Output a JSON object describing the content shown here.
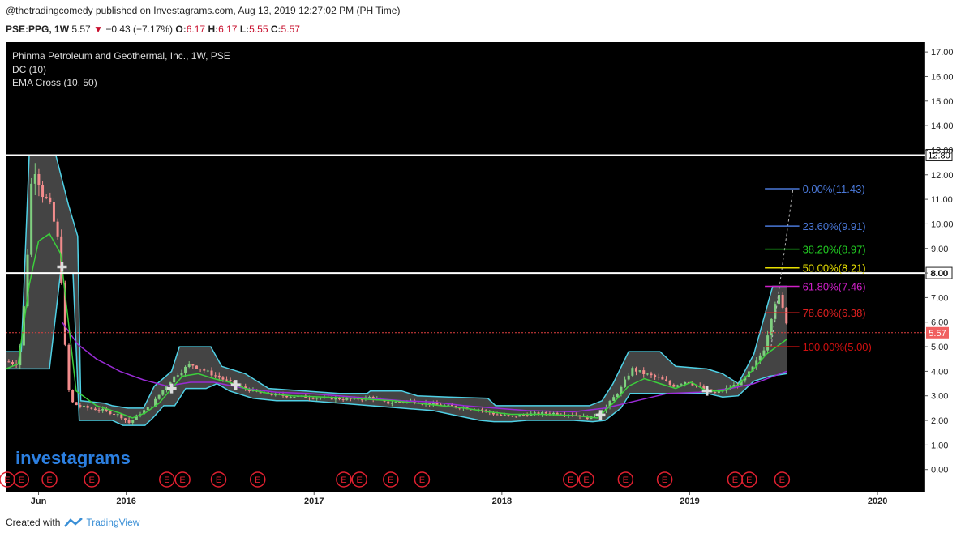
{
  "header": {
    "published": "@thetradingcomedy published on Investagrams.com, Aug 13, 2019 12:27:02 PM (PH Time)",
    "symbol": "PSE:PPG, 1W",
    "last": "5.57",
    "change": "−0.43 (−7.17%)",
    "open_label": "O:",
    "open": "6.17",
    "high_label": "H:",
    "high": "6.17",
    "low_label": "L:",
    "low": "5.55",
    "close_label": "C:",
    "close": "5.57"
  },
  "legend": {
    "title": "Phinma Petroleum and Geothermal, Inc., 1W, PSE",
    "dc": "DC (10)",
    "ema": "EMA Cross (10, 50)"
  },
  "watermark": "investagrams",
  "footer": {
    "created_with": "Created with",
    "brand": "TradingView"
  },
  "chart_data": {
    "type": "candlestick",
    "title": "Phinma Petroleum and Geothermal, Inc., 1W, PSE",
    "ylim": [
      -0.9,
      17.4
    ],
    "y_ticks": [
      "0.00",
      "1.00",
      "2.00",
      "3.00",
      "4.00",
      "5.00",
      "6.00",
      "7.00",
      "8.00",
      "9.00",
      "10.00",
      "11.00",
      "12.00",
      "13.00",
      "14.00",
      "15.00",
      "16.00",
      "17.00"
    ],
    "x_ticks": [
      {
        "label": "Jun",
        "t": 0.8
      },
      {
        "label": "2016",
        "t": 6.4
      },
      {
        "label": "2017",
        "t": 18.4
      },
      {
        "label": "2018",
        "t": 30.4
      },
      {
        "label": "2019",
        "t": 42.4
      },
      {
        "label": "2020",
        "t": 54.4
      }
    ],
    "x_range": [
      -1.3,
      57.4
    ],
    "horizontal_lines": [
      {
        "price": 12.8,
        "label": "12.80"
      },
      {
        "price": 8.0,
        "label": "8.00"
      }
    ],
    "last_price": {
      "price": 5.57,
      "label": "5.57"
    },
    "fibonacci": [
      {
        "label": "0.00%(11.43)",
        "price": 11.43,
        "color": "#4a78d8"
      },
      {
        "label": "23.60%(9.91)",
        "price": 9.91,
        "color": "#4a78d8"
      },
      {
        "label": "38.20%(8.97)",
        "price": 8.97,
        "color": "#22cc22"
      },
      {
        "label": "50.00%(8.21)",
        "price": 8.21,
        "color": "#e8e000"
      },
      {
        "label": "61.80%(7.46)",
        "price": 7.46,
        "color": "#d020c8"
      },
      {
        "label": "78.60%(6.38)",
        "price": 6.38,
        "color": "#e02020"
      },
      {
        "label": "100.00%(5.00)",
        "price": 5.0,
        "color": "#d01010"
      }
    ],
    "price_path": [
      [
        -1.3,
        4.4
      ],
      [
        -0.5,
        4.3
      ],
      [
        0,
        7.5
      ],
      [
        0.3,
        11.5
      ],
      [
        0.6,
        12.3
      ],
      [
        1.0,
        11.3
      ],
      [
        1.5,
        10.8
      ],
      [
        2.0,
        9.5
      ],
      [
        2.2,
        8.4
      ],
      [
        2.5,
        5.0
      ],
      [
        2.8,
        2.8
      ],
      [
        3.3,
        2.6
      ],
      [
        4,
        2.5
      ],
      [
        5,
        2.4
      ],
      [
        6,
        2.2
      ],
      [
        6.6,
        1.9
      ],
      [
        7.3,
        2.3
      ],
      [
        8,
        2.6
      ],
      [
        8.8,
        3.3
      ],
      [
        9.5,
        3.8
      ],
      [
        10.5,
        4.3
      ],
      [
        11.5,
        4.0
      ],
      [
        12.5,
        3.7
      ],
      [
        13.5,
        3.4
      ],
      [
        15,
        3.1
      ],
      [
        16.5,
        3.0
      ],
      [
        18,
        2.95
      ],
      [
        19.5,
        2.9
      ],
      [
        21,
        2.85
      ],
      [
        22,
        2.95
      ],
      [
        23,
        2.7
      ],
      [
        24.5,
        2.8
      ],
      [
        26,
        2.65
      ],
      [
        27.5,
        2.55
      ],
      [
        29,
        2.45
      ],
      [
        30,
        2.25
      ],
      [
        31,
        2.15
      ],
      [
        32,
        2.25
      ],
      [
        33.5,
        2.3
      ],
      [
        35,
        2.25
      ],
      [
        36,
        2.1
      ],
      [
        37,
        2.5
      ],
      [
        38,
        3.3
      ],
      [
        38.7,
        4.1
      ],
      [
        39.5,
        3.9
      ],
      [
        40.5,
        3.7
      ],
      [
        41.3,
        3.4
      ],
      [
        42.2,
        3.6
      ],
      [
        43.2,
        3.3
      ],
      [
        44,
        3.1
      ],
      [
        45,
        3.35
      ],
      [
        45.8,
        3.6
      ],
      [
        46.6,
        4.3
      ],
      [
        47.2,
        5.0
      ],
      [
        47.6,
        6.2
      ],
      [
        48,
        7.2
      ],
      [
        48.4,
        6.4
      ],
      [
        48.8,
        5.6
      ]
    ],
    "donchian_upper": [
      [
        -1.3,
        4.8
      ],
      [
        -0.3,
        4.8
      ],
      [
        0.2,
        12.8
      ],
      [
        1.9,
        12.8
      ],
      [
        2.7,
        10.8
      ],
      [
        3.3,
        9.5
      ],
      [
        3.5,
        2.8
      ],
      [
        5,
        2.7
      ],
      [
        5.5,
        2.6
      ],
      [
        6.5,
        2.5
      ],
      [
        7.5,
        2.5
      ],
      [
        8.2,
        3.4
      ],
      [
        9.3,
        4.0
      ],
      [
        9.8,
        5.0
      ],
      [
        11.8,
        5.0
      ],
      [
        12.5,
        4.2
      ],
      [
        14,
        3.9
      ],
      [
        15.5,
        3.3
      ],
      [
        20,
        3.1
      ],
      [
        21.8,
        3.1
      ],
      [
        22,
        3.2
      ],
      [
        24,
        3.2
      ],
      [
        25,
        3.0
      ],
      [
        27,
        2.95
      ],
      [
        29.5,
        2.9
      ],
      [
        30,
        2.6
      ],
      [
        33,
        2.6
      ],
      [
        33.5,
        2.6
      ],
      [
        36,
        2.6
      ],
      [
        36.8,
        2.8
      ],
      [
        37.5,
        3.5
      ],
      [
        38.5,
        4.8
      ],
      [
        40.5,
        4.8
      ],
      [
        41.5,
        4.2
      ],
      [
        43.5,
        4.1
      ],
      [
        44.5,
        3.9
      ],
      [
        45.5,
        3.5
      ],
      [
        46.5,
        4.7
      ],
      [
        47.7,
        7.46
      ],
      [
        48.6,
        7.46
      ]
    ],
    "donchian_lower": [
      [
        -1.3,
        4.1
      ],
      [
        0.2,
        4.1
      ],
      [
        1.5,
        4.1
      ],
      [
        2.2,
        8.0
      ],
      [
        3.0,
        8.0
      ],
      [
        3.4,
        2.0
      ],
      [
        5.5,
        2.0
      ],
      [
        6.2,
        1.8
      ],
      [
        7.6,
        1.8
      ],
      [
        8.1,
        2.1
      ],
      [
        8.8,
        2.6
      ],
      [
        9.5,
        2.6
      ],
      [
        10.2,
        3.3
      ],
      [
        11.5,
        3.3
      ],
      [
        12.2,
        3.5
      ],
      [
        13,
        3.2
      ],
      [
        14.5,
        2.9
      ],
      [
        16,
        2.8
      ],
      [
        18,
        2.8
      ],
      [
        20,
        2.7
      ],
      [
        22,
        2.6
      ],
      [
        24,
        2.5
      ],
      [
        26,
        2.4
      ],
      [
        27.5,
        2.2
      ],
      [
        29,
        2.0
      ],
      [
        29.9,
        1.95
      ],
      [
        31,
        1.95
      ],
      [
        32,
        2.0
      ],
      [
        35,
        2.0
      ],
      [
        36.2,
        1.95
      ],
      [
        37,
        2.0
      ],
      [
        38,
        2.5
      ],
      [
        38.6,
        3.1
      ],
      [
        43.5,
        3.1
      ],
      [
        44.5,
        2.95
      ],
      [
        45.5,
        3.0
      ],
      [
        46.5,
        3.6
      ],
      [
        47.5,
        3.8
      ],
      [
        48.6,
        3.9
      ]
    ],
    "ema10": [
      [
        -1.3,
        4.1
      ],
      [
        -0.5,
        4.3
      ],
      [
        0.2,
        7.5
      ],
      [
        0.8,
        9.3
      ],
      [
        1.5,
        9.6
      ],
      [
        2.2,
        8.8
      ],
      [
        2.8,
        5.5
      ],
      [
        3.2,
        3.2
      ],
      [
        4.5,
        2.6
      ],
      [
        6,
        2.3
      ],
      [
        6.8,
        2.1
      ],
      [
        7.6,
        2.3
      ],
      [
        8.5,
        2.7
      ],
      [
        9.3,
        3.3
      ],
      [
        10,
        3.8
      ],
      [
        11,
        3.9
      ],
      [
        12,
        3.7
      ],
      [
        13,
        3.55
      ],
      [
        14,
        3.3
      ],
      [
        15.5,
        3.1
      ],
      [
        17,
        3.0
      ],
      [
        19,
        2.95
      ],
      [
        21,
        2.9
      ],
      [
        22,
        2.85
      ],
      [
        23.5,
        2.8
      ],
      [
        25,
        2.7
      ],
      [
        26.5,
        2.6
      ],
      [
        28,
        2.5
      ],
      [
        29.5,
        2.35
      ],
      [
        31,
        2.25
      ],
      [
        33,
        2.25
      ],
      [
        35,
        2.2
      ],
      [
        36.5,
        2.1
      ],
      [
        37.5,
        2.7
      ],
      [
        38.5,
        3.4
      ],
      [
        39.5,
        3.7
      ],
      [
        40.5,
        3.5
      ],
      [
        41.5,
        3.3
      ],
      [
        42.5,
        3.55
      ],
      [
        43.5,
        3.2
      ],
      [
        44.5,
        3.2
      ],
      [
        45.5,
        3.45
      ],
      [
        46.5,
        4.1
      ],
      [
        47.3,
        4.7
      ],
      [
        48.6,
        5.3
      ]
    ],
    "ema50": [
      [
        2.3,
        6.0
      ],
      [
        3.3,
        5.1
      ],
      [
        4.5,
        4.5
      ],
      [
        6,
        4.0
      ],
      [
        7.5,
        3.65
      ],
      [
        9,
        3.4
      ],
      [
        10.5,
        3.55
      ],
      [
        12,
        3.55
      ],
      [
        14,
        3.3
      ],
      [
        16,
        3.15
      ],
      [
        18,
        3.1
      ],
      [
        20,
        3.0
      ],
      [
        22,
        2.9
      ],
      [
        24,
        2.8
      ],
      [
        26,
        2.75
      ],
      [
        28,
        2.6
      ],
      [
        30,
        2.5
      ],
      [
        32,
        2.4
      ],
      [
        35,
        2.35
      ],
      [
        37,
        2.5
      ],
      [
        39,
        2.8
      ],
      [
        41,
        3.1
      ],
      [
        43,
        3.15
      ],
      [
        45,
        3.3
      ],
      [
        46.5,
        3.5
      ],
      [
        48.6,
        4.0
      ]
    ],
    "ema_cross_markers": [
      2.3,
      9.3,
      13.4,
      36.7,
      43.5
    ],
    "earnings_markers": [
      -1.2,
      -0.3,
      1.5,
      4.2,
      9.0,
      10.0,
      12.3,
      14.8,
      20.3,
      21.3,
      23.3,
      25.3,
      34.8,
      35.8,
      38.3,
      40.8,
      45.3,
      46.2,
      48.3
    ],
    "earnings_label": "E"
  }
}
